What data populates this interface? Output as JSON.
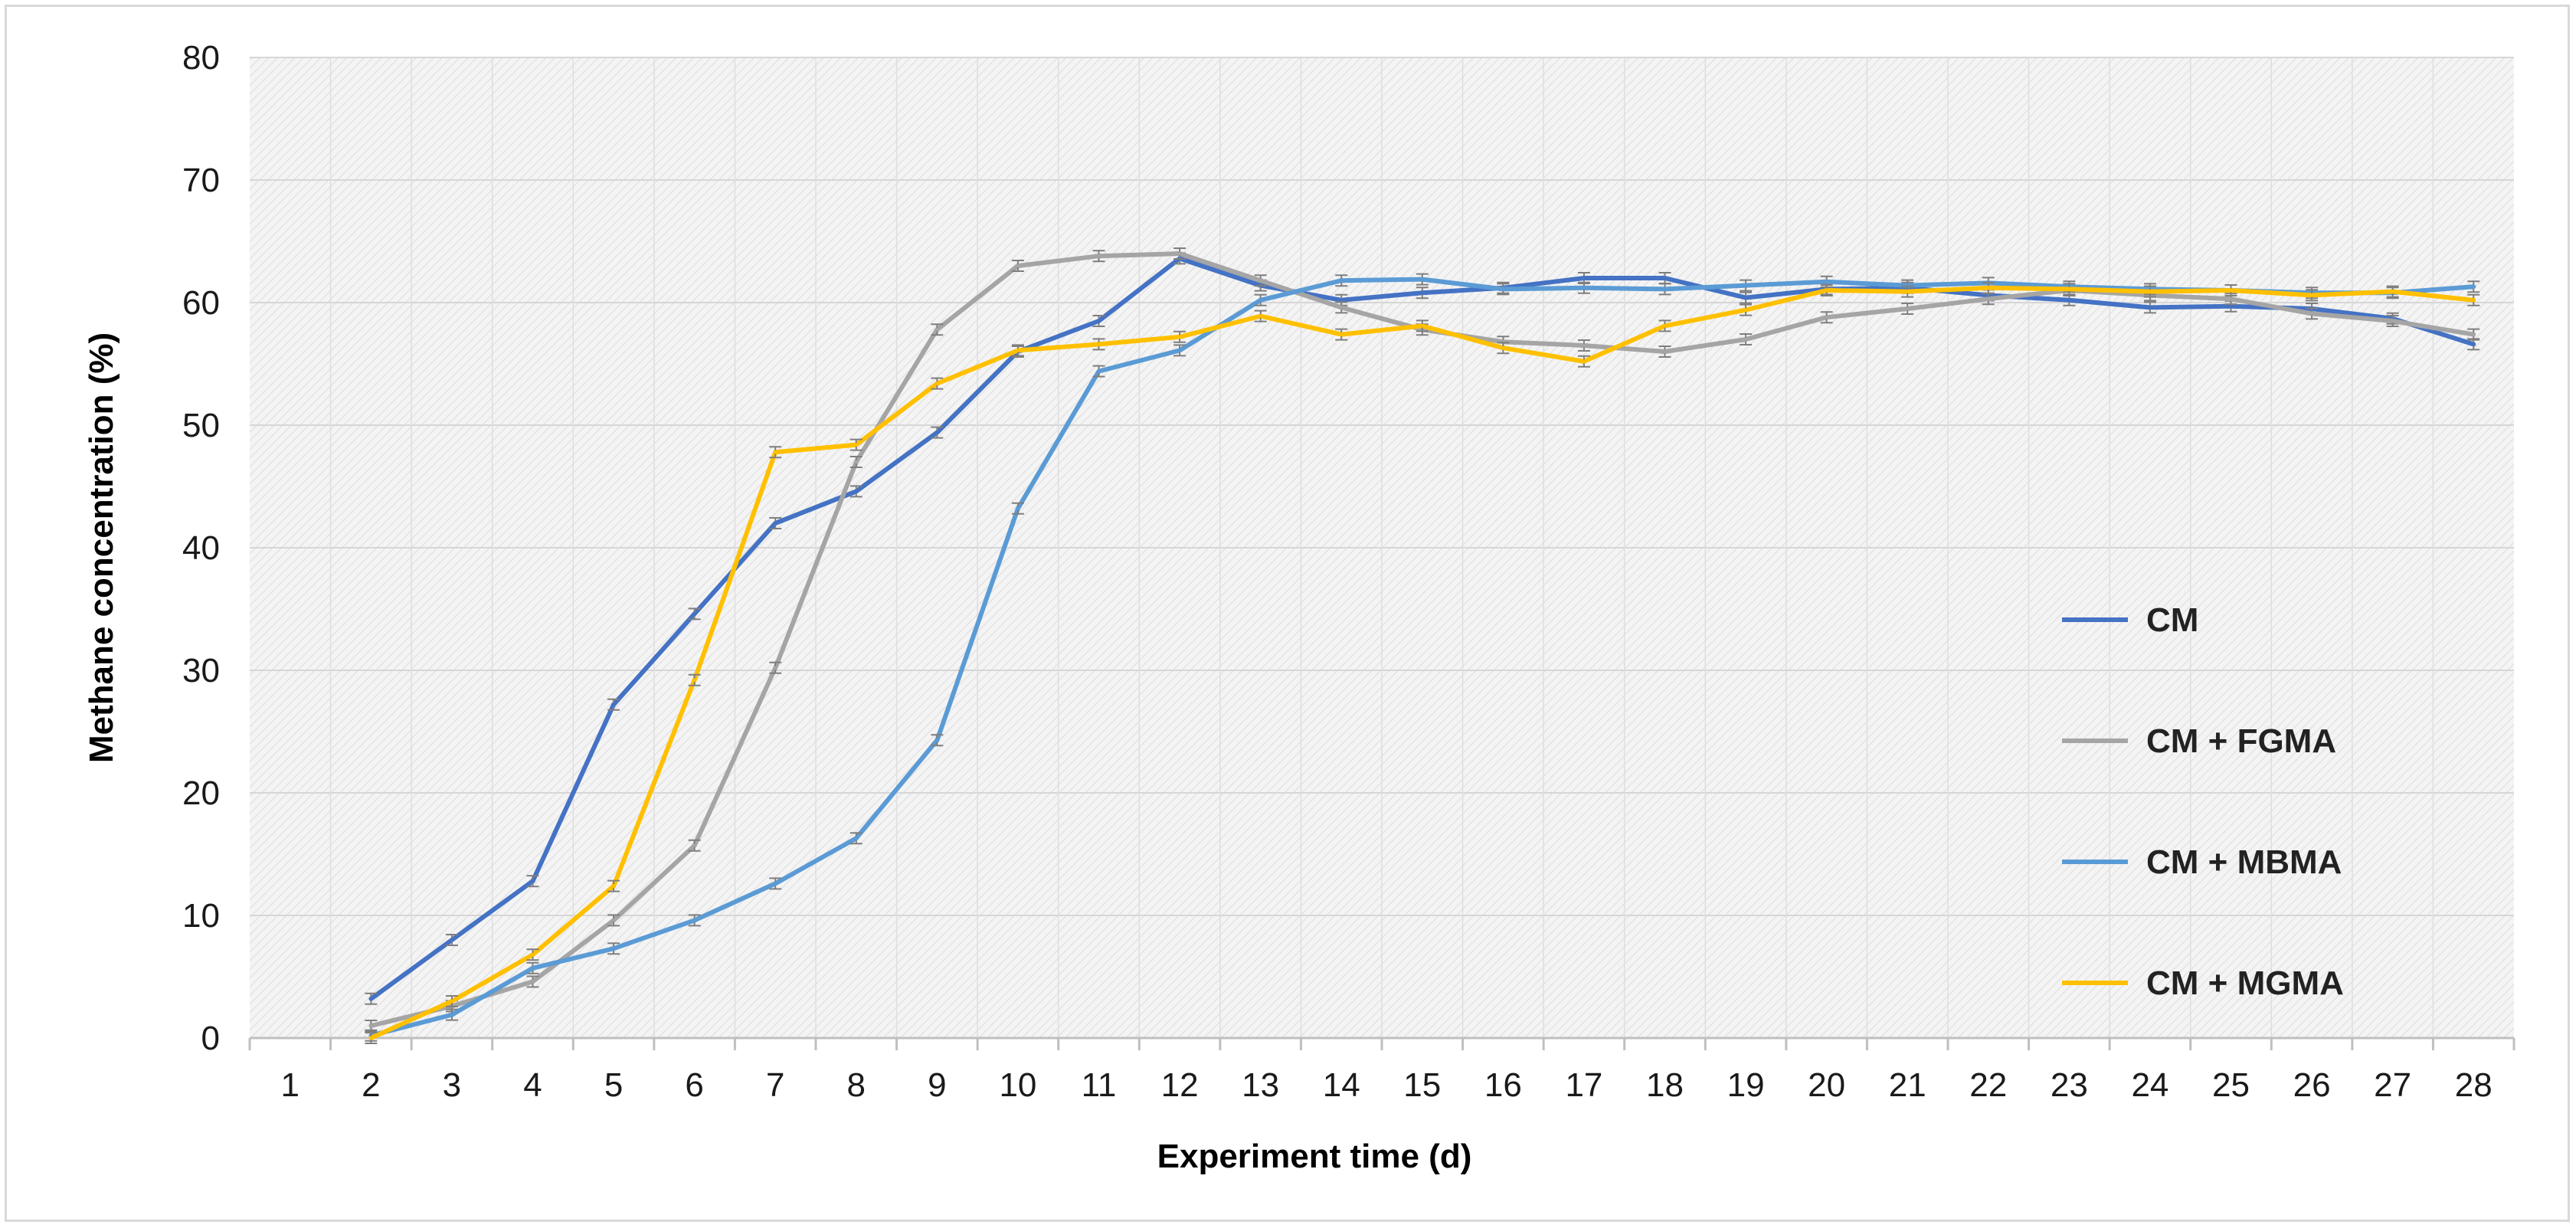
{
  "chart_data": {
    "type": "line",
    "title": "",
    "xlabel": "Experiment time (d)",
    "ylabel": "Methane concentration (%)",
    "ylim": [
      0,
      80
    ],
    "yticks": [
      0,
      10,
      20,
      30,
      40,
      50,
      60,
      70,
      80
    ],
    "x": [
      1,
      2,
      3,
      4,
      5,
      6,
      7,
      8,
      9,
      10,
      11,
      12,
      13,
      14,
      15,
      16,
      17,
      18,
      19,
      20,
      21,
      22,
      23,
      24,
      25,
      26,
      27,
      28
    ],
    "grid": true,
    "error_bars": true,
    "legend_position": "right",
    "series": [
      {
        "name": "CM",
        "color": "#4472C4",
        "values": [
          null,
          3.2,
          8.0,
          12.8,
          27.2,
          34.6,
          42.0,
          44.6,
          49.4,
          56.0,
          58.5,
          63.6,
          61.4,
          60.2,
          60.8,
          61.2,
          62.0,
          62.0,
          60.4,
          61.1,
          61.2,
          60.6,
          60.2,
          59.6,
          59.7,
          59.5,
          58.7,
          56.6
        ]
      },
      {
        "name": "CM + FGMA",
        "color": "#A5A5A5",
        "values": [
          null,
          1.0,
          2.6,
          4.6,
          9.6,
          15.7,
          30.2,
          47.0,
          57.8,
          63.0,
          63.8,
          64.0,
          61.8,
          59.6,
          57.8,
          56.8,
          56.5,
          56.0,
          57.0,
          58.8,
          59.5,
          60.3,
          61.0,
          60.6,
          60.3,
          59.1,
          58.5,
          57.4
        ]
      },
      {
        "name": "CM + MBMA",
        "color": "#5B9BD5",
        "values": [
          null,
          0.2,
          1.9,
          5.7,
          7.3,
          9.6,
          12.6,
          16.3,
          24.3,
          43.2,
          54.4,
          56.1,
          60.2,
          61.8,
          61.9,
          61.1,
          61.2,
          61.1,
          61.4,
          61.7,
          61.4,
          61.6,
          61.3,
          61.1,
          61.0,
          60.8,
          60.8,
          61.3
        ]
      },
      {
        "name": "CM + MGMA",
        "color": "#FFC000",
        "values": [
          null,
          0.0,
          3.0,
          6.8,
          12.4,
          29.2,
          47.8,
          48.4,
          53.4,
          56.1,
          56.6,
          57.2,
          58.9,
          57.4,
          58.1,
          56.3,
          55.2,
          58.1,
          59.4,
          61.0,
          60.9,
          61.2,
          61.1,
          60.9,
          61.0,
          60.6,
          60.9,
          60.2
        ]
      }
    ]
  }
}
